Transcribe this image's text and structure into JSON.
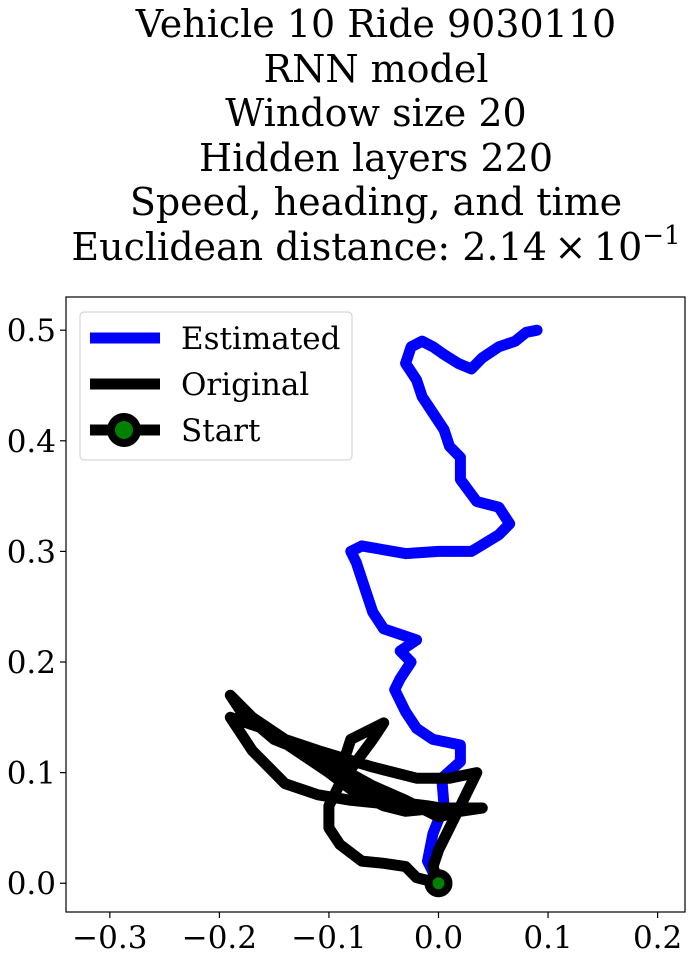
{
  "title_lines": [
    "Vehicle 10 Ride 9030110",
    "RNN model",
    "Window size 20",
    "Hidden layers 220",
    "Speed, heading, and time"
  ],
  "distance_label": {
    "prefix": "Euclidean distance: 2.14 × 10",
    "exponent": "−1"
  },
  "chart_data": {
    "type": "line",
    "xlim": [
      -0.34,
      0.225
    ],
    "ylim": [
      -0.026,
      0.53
    ],
    "xticks": [
      -0.3,
      -0.2,
      -0.1,
      0.0,
      0.1,
      0.2
    ],
    "xtick_labels": [
      "−0.3",
      "−0.2",
      "−0.1",
      "0.0",
      "0.1",
      "0.2"
    ],
    "yticks": [
      0.0,
      0.1,
      0.2,
      0.3,
      0.4,
      0.5
    ],
    "ytick_labels": [
      "0.0",
      "0.1",
      "0.2",
      "0.3",
      "0.4",
      "0.5"
    ],
    "grid": false,
    "legend_position": "upper-left",
    "legend": [
      {
        "label": "Estimated",
        "color": "#0000ff",
        "marker": "none"
      },
      {
        "label": "Original",
        "color": "#000000",
        "marker": "none"
      },
      {
        "label": "Start",
        "color": "#000000",
        "marker": "circle",
        "marker_fill": "#008000"
      }
    ],
    "series": [
      {
        "name": "Estimated",
        "color": "#0000ff",
        "points": [
          [
            0.0,
            0.0
          ],
          [
            -0.01,
            0.02
          ],
          [
            -0.005,
            0.045
          ],
          [
            0.005,
            0.07
          ],
          [
            0.003,
            0.095
          ],
          [
            0.02,
            0.11
          ],
          [
            0.02,
            0.125
          ],
          [
            -0.005,
            0.13
          ],
          [
            -0.02,
            0.14
          ],
          [
            -0.03,
            0.155
          ],
          [
            -0.04,
            0.175
          ],
          [
            -0.035,
            0.185
          ],
          [
            -0.025,
            0.2
          ],
          [
            -0.035,
            0.21
          ],
          [
            -0.02,
            0.22
          ],
          [
            -0.05,
            0.23
          ],
          [
            -0.06,
            0.245
          ],
          [
            -0.065,
            0.26
          ],
          [
            -0.07,
            0.275
          ],
          [
            -0.075,
            0.29
          ],
          [
            -0.08,
            0.3
          ],
          [
            -0.07,
            0.305
          ],
          [
            -0.03,
            0.298
          ],
          [
            0.0,
            0.3
          ],
          [
            0.03,
            0.3
          ],
          [
            0.055,
            0.315
          ],
          [
            0.065,
            0.325
          ],
          [
            0.055,
            0.34
          ],
          [
            0.035,
            0.345
          ],
          [
            0.02,
            0.365
          ],
          [
            0.02,
            0.385
          ],
          [
            0.01,
            0.395
          ],
          [
            0.005,
            0.41
          ],
          [
            -0.005,
            0.425
          ],
          [
            -0.015,
            0.44
          ],
          [
            -0.02,
            0.455
          ],
          [
            -0.03,
            0.47
          ],
          [
            -0.025,
            0.485
          ],
          [
            -0.015,
            0.49
          ],
          [
            -0.005,
            0.485
          ],
          [
            0.005,
            0.478
          ],
          [
            0.018,
            0.47
          ],
          [
            0.03,
            0.465
          ],
          [
            0.04,
            0.475
          ],
          [
            0.055,
            0.485
          ],
          [
            0.07,
            0.49
          ],
          [
            0.08,
            0.498
          ],
          [
            0.09,
            0.5
          ]
        ]
      },
      {
        "name": "Original",
        "color": "#000000",
        "points": [
          [
            0.0,
            0.0
          ],
          [
            -0.02,
            0.005
          ],
          [
            -0.03,
            0.015
          ],
          [
            -0.05,
            0.018
          ],
          [
            -0.07,
            0.02
          ],
          [
            -0.09,
            0.035
          ],
          [
            -0.1,
            0.05
          ],
          [
            -0.1,
            0.07
          ],
          [
            -0.09,
            0.09
          ],
          [
            -0.075,
            0.11
          ],
          [
            -0.06,
            0.13
          ],
          [
            -0.05,
            0.145
          ],
          [
            -0.08,
            0.13
          ],
          [
            -0.09,
            0.1
          ],
          [
            -0.075,
            0.09
          ],
          [
            -0.06,
            0.075
          ],
          [
            -0.05,
            0.07
          ],
          [
            -0.03,
            0.065
          ],
          [
            0.0,
            0.068
          ],
          [
            0.04,
            0.068
          ],
          [
            0.02,
            0.065
          ],
          [
            -0.03,
            0.07
          ],
          [
            -0.08,
            0.075
          ],
          [
            -0.11,
            0.08
          ],
          [
            -0.14,
            0.09
          ],
          [
            -0.17,
            0.12
          ],
          [
            -0.19,
            0.15
          ],
          [
            -0.16,
            0.14
          ],
          [
            -0.13,
            0.12
          ],
          [
            -0.1,
            0.1
          ],
          [
            -0.08,
            0.085
          ],
          [
            -0.05,
            0.075
          ],
          [
            -0.01,
            0.07
          ],
          [
            0.02,
            0.065
          ],
          [
            0.0,
            0.06
          ],
          [
            -0.03,
            0.075
          ],
          [
            -0.06,
            0.088
          ],
          [
            -0.1,
            0.11
          ],
          [
            -0.15,
            0.13
          ],
          [
            -0.18,
            0.155
          ],
          [
            -0.19,
            0.17
          ],
          [
            -0.17,
            0.15
          ],
          [
            -0.14,
            0.13
          ],
          [
            -0.11,
            0.12
          ],
          [
            -0.06,
            0.105
          ],
          [
            -0.02,
            0.095
          ],
          [
            0.01,
            0.095
          ],
          [
            0.035,
            0.1
          ],
          [
            0.025,
            0.08
          ],
          [
            0.01,
            0.05
          ],
          [
            0.0,
            0.03
          ],
          [
            -0.005,
            0.015
          ],
          [
            0.0,
            0.0
          ]
        ]
      }
    ],
    "start_point": [
      0.0,
      0.0
    ]
  }
}
